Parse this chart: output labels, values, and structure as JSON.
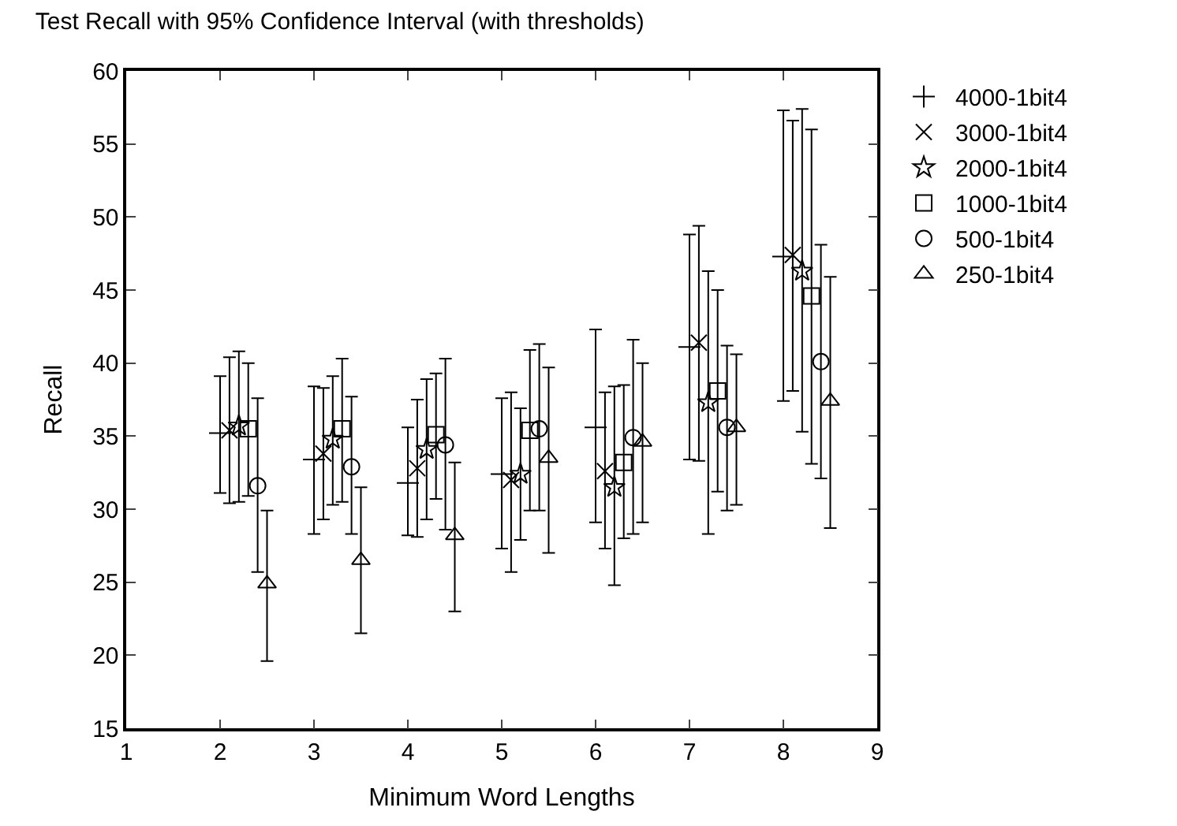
{
  "chart_data": {
    "type": "scatter",
    "title": "Test Recall with 95% Confidence Interval (with thresholds)",
    "xlabel": "Minimum Word Lengths",
    "ylabel": "Recall",
    "xlim": [
      1,
      9
    ],
    "xticks": [
      1,
      2,
      3,
      4,
      5,
      6,
      7,
      8,
      9
    ],
    "ylim": [
      15,
      60
    ],
    "yticks": [
      15,
      20,
      25,
      30,
      35,
      40,
      45,
      50,
      55,
      60
    ],
    "legend": "top right",
    "series": [
      {
        "name": "4000-1bit4",
        "color": "#000000",
        "marker": "cross",
        "x": [
          2,
          3,
          4,
          5,
          6,
          7,
          8
        ],
        "values": [
          35.2,
          33.4,
          31.8,
          32.4,
          35.6,
          41.1,
          47.3
        ],
        "errors": [
          [
            31.1,
            39.1
          ],
          [
            28.3,
            38.4
          ],
          [
            28.2,
            35.6
          ],
          [
            27.3,
            37.6
          ],
          [
            29.1,
            42.3
          ],
          [
            33.4,
            48.8
          ],
          [
            37.4,
            57.3
          ]
        ]
      },
      {
        "name": "3000-1bit4",
        "color": "#000000",
        "marker": "x",
        "x": [
          2.1,
          3.1,
          4.1,
          5.1,
          6.1,
          7.1,
          8.1
        ],
        "values": [
          35.4,
          33.8,
          32.8,
          32.0,
          32.6,
          41.4,
          47.4
        ],
        "errors": [
          [
            30.4,
            40.4
          ],
          [
            29.3,
            38.3
          ],
          [
            28.1,
            37.5
          ],
          [
            25.7,
            38.0
          ],
          [
            27.3,
            38.0
          ],
          [
            33.3,
            49.4
          ],
          [
            38.1,
            56.6
          ]
        ]
      },
      {
        "name": "2000-1bit4",
        "color": "#000000",
        "marker": "star",
        "x": [
          2.2,
          3.2,
          4.2,
          5.2,
          6.2,
          7.2,
          8.2
        ],
        "values": [
          35.7,
          34.8,
          34.1,
          32.4,
          31.5,
          37.3,
          46.3
        ],
        "errors": [
          [
            30.5,
            40.8
          ],
          [
            30.3,
            39.1
          ],
          [
            29.3,
            38.9
          ],
          [
            27.9,
            36.9
          ],
          [
            24.8,
            38.4
          ],
          [
            28.3,
            46.3
          ],
          [
            35.3,
            57.4
          ]
        ]
      },
      {
        "name": "1000-1bit4",
        "color": "#000000",
        "marker": "square",
        "x": [
          2.3,
          3.3,
          4.3,
          5.3,
          6.3,
          7.3,
          8.3
        ],
        "values": [
          35.5,
          35.5,
          35.1,
          35.4,
          33.2,
          38.1,
          44.6
        ],
        "errors": [
          [
            30.9,
            40.0
          ],
          [
            30.5,
            40.3
          ],
          [
            30.7,
            39.3
          ],
          [
            29.9,
            40.9
          ],
          [
            28.0,
            38.5
          ],
          [
            31.2,
            45.0
          ],
          [
            33.1,
            56.0
          ]
        ]
      },
      {
        "name": "500-1bit4",
        "color": "#000000",
        "marker": "circle",
        "x": [
          2.4,
          3.4,
          4.4,
          5.4,
          6.4,
          7.4,
          8.4
        ],
        "values": [
          31.6,
          32.9,
          34.4,
          35.5,
          34.9,
          35.6,
          40.1
        ],
        "errors": [
          [
            25.7,
            37.6
          ],
          [
            28.3,
            37.7
          ],
          [
            28.6,
            40.3
          ],
          [
            29.9,
            41.3
          ],
          [
            28.3,
            41.6
          ],
          [
            29.9,
            41.2
          ],
          [
            32.1,
            48.1
          ]
        ]
      },
      {
        "name": "250-1bit4",
        "color": "#000000",
        "marker": "triangle",
        "x": [
          2.5,
          3.5,
          4.5,
          5.5,
          6.5,
          7.5,
          8.5
        ],
        "values": [
          24.9,
          26.5,
          28.2,
          33.5,
          34.6,
          35.6,
          37.4
        ],
        "errors": [
          [
            19.6,
            29.9
          ],
          [
            21.5,
            31.5
          ],
          [
            23.0,
            33.2
          ],
          [
            27.0,
            39.7
          ],
          [
            29.1,
            40.0
          ],
          [
            30.3,
            40.6
          ],
          [
            28.7,
            45.9
          ]
        ]
      }
    ]
  }
}
